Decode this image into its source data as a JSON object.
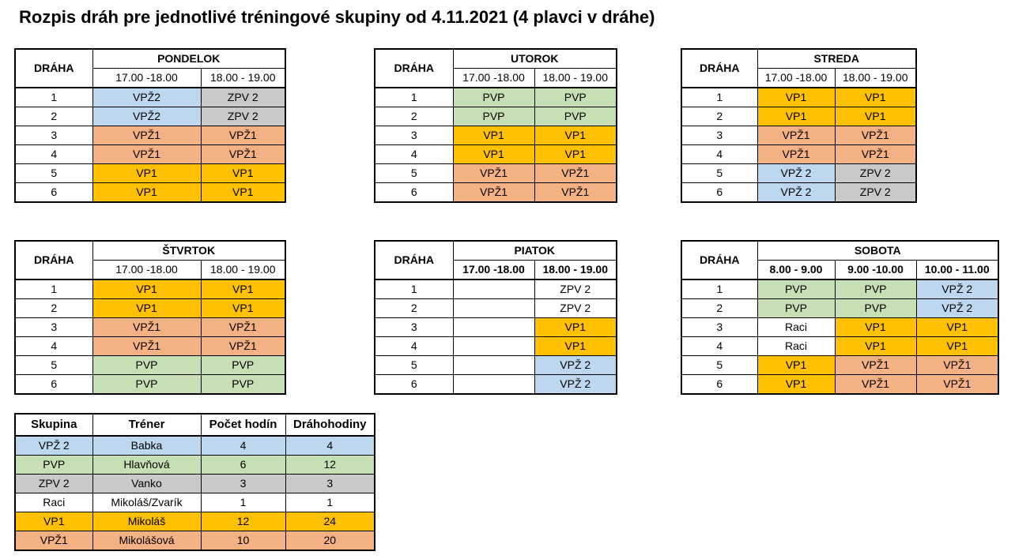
{
  "title": "Rozpis dráh pre jednotlivé tréningové skupiny od 4.11.2021 (4 plavci v dráhe)",
  "lane_header": "DRÁHA",
  "colors": {
    "VPŽ2": "#bdd7ee",
    "ZPV2": "#c9c9c9",
    "VPŽ1": "#f4b183",
    "VP1": "#ffc000",
    "PVP": "#c6e0b4",
    "Raci": "#ffffff"
  },
  "days": [
    {
      "name": "PONDELOK",
      "times": [
        "17.00 -18.00",
        "18.00 - 19.00"
      ],
      "rows": [
        {
          "lane": "1",
          "cells": [
            {
              "text": "VPŽ2",
              "group": "VPZ2"
            },
            {
              "text": "ZPV 2",
              "group": "ZPV2"
            }
          ]
        },
        {
          "lane": "2",
          "cells": [
            {
              "text": "VPŽ2",
              "group": "VPZ2"
            },
            {
              "text": "ZPV 2",
              "group": "ZPV2"
            }
          ]
        },
        {
          "lane": "3",
          "cells": [
            {
              "text": "VPŽ1",
              "group": "VPZ1"
            },
            {
              "text": "VPŽ1",
              "group": "VPZ1"
            }
          ]
        },
        {
          "lane": "4",
          "cells": [
            {
              "text": "VPŽ1",
              "group": "VPZ1"
            },
            {
              "text": "VPŽ1",
              "group": "VPZ1"
            }
          ]
        },
        {
          "lane": "5",
          "cells": [
            {
              "text": "VP1",
              "group": "VP1"
            },
            {
              "text": "VP1",
              "group": "VP1"
            }
          ]
        },
        {
          "lane": "6",
          "cells": [
            {
              "text": "VP1",
              "group": "VP1"
            },
            {
              "text": "VP1",
              "group": "VP1"
            }
          ]
        }
      ]
    },
    {
      "name": "UTOROK",
      "times": [
        "17.00 -18.00",
        "18.00 - 19.00"
      ],
      "rows": [
        {
          "lane": "1",
          "cells": [
            {
              "text": "PVP",
              "group": "PVP"
            },
            {
              "text": "PVP",
              "group": "PVP"
            }
          ]
        },
        {
          "lane": "2",
          "cells": [
            {
              "text": "PVP",
              "group": "PVP"
            },
            {
              "text": "PVP",
              "group": "PVP"
            }
          ]
        },
        {
          "lane": "3",
          "cells": [
            {
              "text": "VP1",
              "group": "VP1"
            },
            {
              "text": "VP1",
              "group": "VP1"
            }
          ]
        },
        {
          "lane": "4",
          "cells": [
            {
              "text": "VP1",
              "group": "VP1"
            },
            {
              "text": "VP1",
              "group": "VP1"
            }
          ]
        },
        {
          "lane": "5",
          "cells": [
            {
              "text": "VPŽ1",
              "group": "VPZ1"
            },
            {
              "text": "VPŽ1",
              "group": "VPZ1"
            }
          ]
        },
        {
          "lane": "6",
          "cells": [
            {
              "text": "VPŽ1",
              "group": "VPZ1"
            },
            {
              "text": "VPŽ1",
              "group": "VPZ1"
            }
          ]
        }
      ]
    },
    {
      "name": "STREDA",
      "times": [
        "17.00 -18.00",
        "18.00 - 19.00"
      ],
      "rows": [
        {
          "lane": "1",
          "cells": [
            {
              "text": "VP1",
              "group": "VP1"
            },
            {
              "text": "VP1",
              "group": "VP1"
            }
          ]
        },
        {
          "lane": "2",
          "cells": [
            {
              "text": "VP1",
              "group": "VP1"
            },
            {
              "text": "VP1",
              "group": "VP1"
            }
          ]
        },
        {
          "lane": "3",
          "cells": [
            {
              "text": "VPŽ1",
              "group": "VPZ1"
            },
            {
              "text": "VPŽ1",
              "group": "VPZ1"
            }
          ]
        },
        {
          "lane": "4",
          "cells": [
            {
              "text": "VPŽ1",
              "group": "VPZ1"
            },
            {
              "text": "VPŽ1",
              "group": "VPZ1"
            }
          ]
        },
        {
          "lane": "5",
          "cells": [
            {
              "text": "VPŽ 2",
              "group": "VPZ2"
            },
            {
              "text": "ZPV 2",
              "group": "ZPV2"
            }
          ]
        },
        {
          "lane": "6",
          "cells": [
            {
              "text": "VPŽ 2",
              "group": "VPZ2"
            },
            {
              "text": "ZPV 2",
              "group": "ZPV2"
            }
          ]
        }
      ]
    },
    {
      "name": "ŠTVRTOK",
      "times": [
        "17.00 -18.00",
        "18.00 - 19.00"
      ],
      "rows": [
        {
          "lane": "1",
          "cells": [
            {
              "text": "VP1",
              "group": "VP1"
            },
            {
              "text": "VP1",
              "group": "VP1"
            }
          ]
        },
        {
          "lane": "2",
          "cells": [
            {
              "text": "VP1",
              "group": "VP1"
            },
            {
              "text": "VP1",
              "group": "VP1"
            }
          ]
        },
        {
          "lane": "3",
          "cells": [
            {
              "text": "VPŽ1",
              "group": "VPZ1"
            },
            {
              "text": "VPŽ1",
              "group": "VPZ1"
            }
          ]
        },
        {
          "lane": "4",
          "cells": [
            {
              "text": "VPŽ1",
              "group": "VPZ1"
            },
            {
              "text": "VPŽ1",
              "group": "VPZ1"
            }
          ]
        },
        {
          "lane": "5",
          "cells": [
            {
              "text": "PVP",
              "group": "PVP"
            },
            {
              "text": "PVP",
              "group": "PVP"
            }
          ]
        },
        {
          "lane": "6",
          "cells": [
            {
              "text": "PVP",
              "group": "PVP"
            },
            {
              "text": "PVP",
              "group": "PVP"
            }
          ]
        }
      ]
    },
    {
      "name": "PIATOK",
      "times": [
        "17.00 -18.00",
        "18.00 - 19.00"
      ],
      "times_bold": true,
      "rows": [
        {
          "lane": "1",
          "cells": [
            {
              "text": "",
              "group": "empty"
            },
            {
              "text": "ZPV 2",
              "group": "Raci"
            }
          ]
        },
        {
          "lane": "2",
          "cells": [
            {
              "text": "",
              "group": "empty"
            },
            {
              "text": "ZPV 2",
              "group": "Raci"
            }
          ]
        },
        {
          "lane": "3",
          "cells": [
            {
              "text": "",
              "group": "empty"
            },
            {
              "text": "VP1",
              "group": "VP1"
            }
          ]
        },
        {
          "lane": "4",
          "cells": [
            {
              "text": "",
              "group": "empty"
            },
            {
              "text": "VP1",
              "group": "VP1"
            }
          ]
        },
        {
          "lane": "5",
          "cells": [
            {
              "text": "",
              "group": "empty"
            },
            {
              "text": "VPŽ 2",
              "group": "VPZ2"
            }
          ]
        },
        {
          "lane": "6",
          "cells": [
            {
              "text": "",
              "group": "empty"
            },
            {
              "text": "VPŽ 2",
              "group": "VPZ2"
            }
          ]
        }
      ]
    },
    {
      "name": "SOBOTA",
      "times": [
        "8.00 - 9.00",
        "9.00 -10.00",
        "10.00 - 11.00"
      ],
      "times_bold": true,
      "rows": [
        {
          "lane": "1",
          "cells": [
            {
              "text": "PVP",
              "group": "PVP"
            },
            {
              "text": "PVP",
              "group": "PVP"
            },
            {
              "text": "VPŽ 2",
              "group": "VPZ2"
            }
          ]
        },
        {
          "lane": "2",
          "cells": [
            {
              "text": "PVP",
              "group": "PVP"
            },
            {
              "text": "PVP",
              "group": "PVP"
            },
            {
              "text": "VPŽ 2",
              "group": "VPZ2"
            }
          ]
        },
        {
          "lane": "3",
          "cells": [
            {
              "text": "Raci",
              "group": "Raci"
            },
            {
              "text": "VP1",
              "group": "VP1"
            },
            {
              "text": "VP1",
              "group": "VP1"
            }
          ]
        },
        {
          "lane": "4",
          "cells": [
            {
              "text": "Raci",
              "group": "Raci"
            },
            {
              "text": "VP1",
              "group": "VP1"
            },
            {
              "text": "VP1",
              "group": "VP1"
            }
          ]
        },
        {
          "lane": "5",
          "cells": [
            {
              "text": "VP1",
              "group": "VP1"
            },
            {
              "text": "VPŽ1",
              "group": "VPZ1"
            },
            {
              "text": "VPŽ1",
              "group": "VPZ1"
            }
          ]
        },
        {
          "lane": "6",
          "cells": [
            {
              "text": "VP1",
              "group": "VP1"
            },
            {
              "text": "VPŽ1",
              "group": "VPZ1"
            },
            {
              "text": "VPŽ1",
              "group": "VPZ1"
            }
          ]
        }
      ]
    }
  ],
  "legend": {
    "headers": [
      "Skupina",
      "Tréner",
      "Počet hodín",
      "Dráhohodiny"
    ],
    "rows": [
      {
        "group": "VPZ2",
        "cells": [
          "VPŽ 2",
          "Babka",
          "4",
          "4"
        ]
      },
      {
        "group": "PVP",
        "cells": [
          "PVP",
          "Hlavňová",
          "6",
          "12"
        ]
      },
      {
        "group": "ZPV2",
        "cells": [
          "ZPV 2",
          "Vanko",
          "3",
          "3"
        ]
      },
      {
        "group": "Raci",
        "cells": [
          "Raci",
          "Mikoláš/Zvarík",
          "1",
          "1"
        ]
      },
      {
        "group": "VP1",
        "cells": [
          "VP1",
          "Mikoláš",
          "12",
          "24"
        ]
      },
      {
        "group": "VPZ1",
        "cells": [
          "VPŽ1",
          "Mikolášová",
          "10",
          "20"
        ]
      }
    ]
  }
}
